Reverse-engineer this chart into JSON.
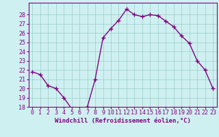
{
  "x": [
    0,
    1,
    2,
    3,
    4,
    5,
    6,
    7,
    8,
    9,
    10,
    11,
    12,
    13,
    14,
    15,
    16,
    17,
    18,
    19,
    20,
    21,
    22,
    23
  ],
  "y": [
    21.8,
    21.5,
    20.3,
    20.0,
    19.0,
    17.8,
    17.8,
    18.0,
    21.0,
    25.5,
    26.5,
    27.4,
    28.6,
    28.0,
    27.8,
    28.0,
    27.9,
    27.3,
    26.7,
    25.7,
    24.9,
    23.0,
    22.0,
    20.0
  ],
  "line_color": "#800080",
  "marker": "+",
  "marker_color": "#800080",
  "bg_color": "#cff0f0",
  "grid_color": "#99cccc",
  "xlabel": "Windchill (Refroidissement éolien,°C)",
  "ylim": [
    18,
    29
  ],
  "xlim": [
    -0.5,
    23.5
  ],
  "yticks": [
    18,
    19,
    20,
    21,
    22,
    23,
    24,
    25,
    26,
    27,
    28
  ],
  "xticks": [
    0,
    1,
    2,
    3,
    4,
    5,
    6,
    7,
    8,
    9,
    10,
    11,
    12,
    13,
    14,
    15,
    16,
    17,
    18,
    19,
    20,
    21,
    22,
    23
  ],
  "xlabel_fontsize": 6.5,
  "tick_fontsize": 6,
  "line_width": 1.0,
  "marker_size": 5
}
